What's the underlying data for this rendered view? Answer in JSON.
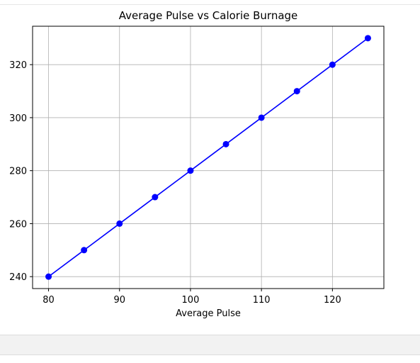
{
  "chart_data": {
    "type": "line",
    "title": "Average Pulse vs Calorie Burnage",
    "xlabel": "Average Pulse",
    "ylabel": "",
    "x": [
      80,
      85,
      90,
      95,
      100,
      105,
      110,
      115,
      120,
      125
    ],
    "series": [
      {
        "values": [
          240,
          250,
          260,
          270,
          280,
          290,
          300,
          310,
          320,
          330
        ]
      }
    ],
    "xlim": [
      77.75,
      127.25
    ],
    "ylim": [
      235.5,
      334.5
    ],
    "xticks": [
      80,
      90,
      100,
      110,
      120
    ],
    "yticks": [
      240,
      260,
      280,
      300,
      320
    ],
    "grid": true,
    "marker": "o",
    "color": "#0000ff"
  }
}
